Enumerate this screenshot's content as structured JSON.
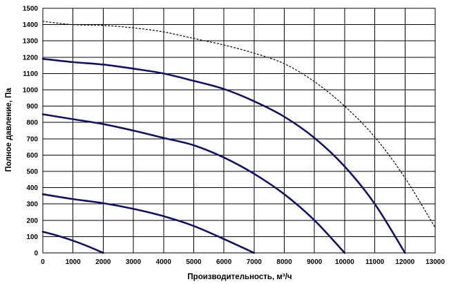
{
  "chart_data": {
    "type": "line",
    "title": "",
    "xlabel": "Производительность, м³/ч",
    "ylabel": "Полное давление, Па",
    "xlim": [
      0,
      13000
    ],
    "ylim": [
      0,
      1500
    ],
    "xticks": [
      0,
      1000,
      2000,
      3000,
      4000,
      5000,
      6000,
      7000,
      8000,
      9000,
      10000,
      11000,
      12000,
      13000
    ],
    "yticks": [
      0,
      100,
      200,
      300,
      400,
      500,
      600,
      700,
      800,
      900,
      1000,
      1100,
      1200,
      1300,
      1400,
      1500
    ],
    "grid": true,
    "legend": "none",
    "colors": {
      "series": "#0f0f6e",
      "dotted": "#000000",
      "grid": "#000000"
    },
    "series": [
      {
        "style": "solid",
        "points": [
          [
            0,
            130
          ],
          [
            500,
            105
          ],
          [
            1000,
            75
          ],
          [
            1500,
            40
          ],
          [
            2000,
            0
          ]
        ]
      },
      {
        "style": "solid",
        "points": [
          [
            0,
            360
          ],
          [
            1000,
            330
          ],
          [
            2000,
            305
          ],
          [
            3000,
            270
          ],
          [
            4000,
            225
          ],
          [
            5000,
            165
          ],
          [
            6000,
            85
          ],
          [
            7000,
            0
          ]
        ]
      },
      {
        "style": "solid",
        "points": [
          [
            0,
            850
          ],
          [
            1000,
            820
          ],
          [
            2000,
            790
          ],
          [
            3000,
            750
          ],
          [
            4000,
            705
          ],
          [
            5000,
            660
          ],
          [
            6000,
            585
          ],
          [
            7000,
            485
          ],
          [
            8000,
            360
          ],
          [
            9000,
            200
          ],
          [
            10000,
            0
          ]
        ]
      },
      {
        "style": "solid",
        "points": [
          [
            0,
            1190
          ],
          [
            1000,
            1170
          ],
          [
            2000,
            1155
          ],
          [
            3000,
            1130
          ],
          [
            4000,
            1100
          ],
          [
            5000,
            1055
          ],
          [
            6000,
            1005
          ],
          [
            7000,
            930
          ],
          [
            8000,
            835
          ],
          [
            9000,
            705
          ],
          [
            10000,
            530
          ],
          [
            11000,
            300
          ],
          [
            12000,
            0
          ]
        ]
      },
      {
        "style": "dotted",
        "points": [
          [
            0,
            1420
          ],
          [
            1000,
            1400
          ],
          [
            2000,
            1395
          ],
          [
            3000,
            1380
          ],
          [
            4000,
            1355
          ],
          [
            5000,
            1315
          ],
          [
            6000,
            1275
          ],
          [
            7000,
            1225
          ],
          [
            8000,
            1160
          ],
          [
            9000,
            1050
          ],
          [
            10000,
            900
          ],
          [
            11000,
            710
          ],
          [
            12000,
            460
          ],
          [
            13000,
            155
          ]
        ]
      }
    ]
  }
}
